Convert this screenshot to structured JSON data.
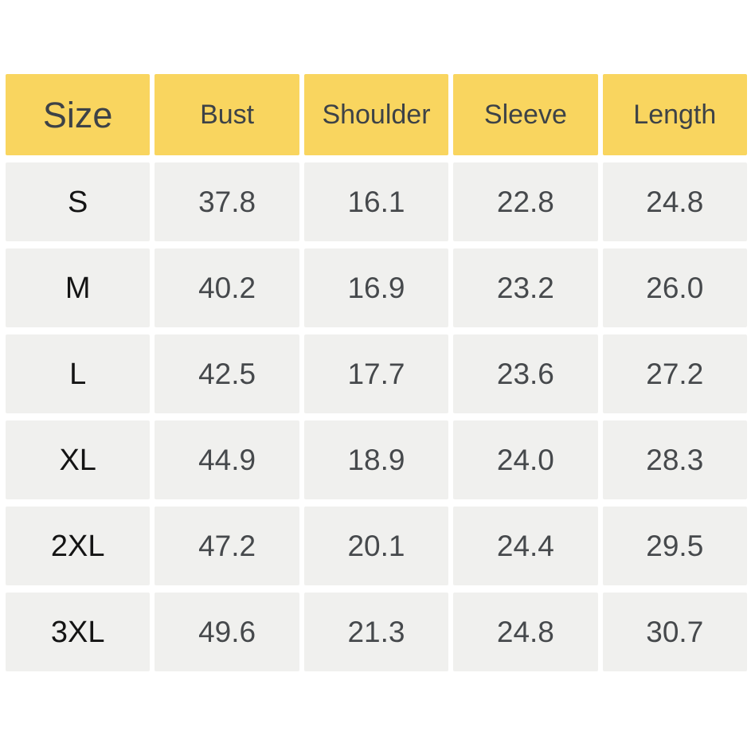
{
  "colors": {
    "page_bg": "#FFFFFF",
    "header_bg": "#F9D55F",
    "header_text": "#3D4247",
    "cell_bg": "#F0F0EE",
    "size_text": "#141414",
    "value_text": "#46494C"
  },
  "chart_data": {
    "type": "table",
    "columns": [
      "Size",
      "Bust",
      "Shoulder",
      "Sleeve",
      "Length"
    ],
    "rows": [
      [
        "S",
        "37.8",
        "16.1",
        "22.8",
        "24.8"
      ],
      [
        "M",
        "40.2",
        "16.9",
        "23.2",
        "26.0"
      ],
      [
        "L",
        "42.5",
        "17.7",
        "23.6",
        "27.2"
      ],
      [
        "XL",
        "44.9",
        "18.9",
        "24.0",
        "28.3"
      ],
      [
        "2XL",
        "47.2",
        "20.1",
        "24.4",
        "29.5"
      ],
      [
        "3XL",
        "49.6",
        "21.3",
        "24.8",
        "30.7"
      ]
    ]
  }
}
